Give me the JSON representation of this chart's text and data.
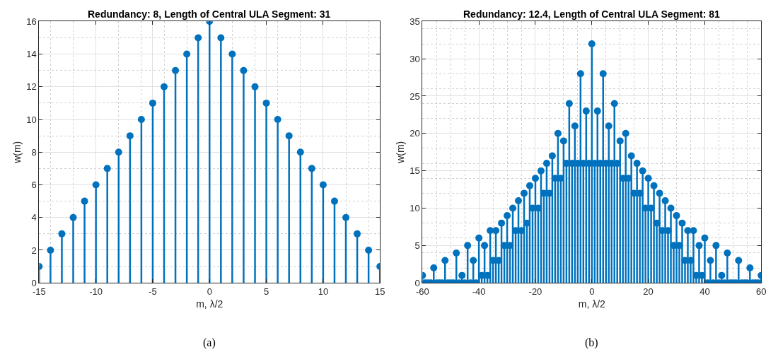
{
  "chart_data": [
    {
      "type": "lollipop",
      "title": "Redundancy: 8, Length of Central ULA Segment: 31",
      "xlabel": "m, λ/2",
      "ylabel": "w(m)",
      "annotations": [
        "(a)"
      ],
      "x": [
        -15,
        -14,
        -13,
        -12,
        -11,
        -10,
        -9,
        -8,
        -7,
        -6,
        -5,
        -4,
        -3,
        -2,
        -1,
        0,
        1,
        2,
        3,
        4,
        5,
        6,
        7,
        8,
        9,
        10,
        11,
        12,
        13,
        14,
        15
      ],
      "series": [
        {
          "color": "#0072bd",
          "values": [
            1,
            2,
            3,
            4,
            5,
            6,
            7,
            8,
            9,
            10,
            11,
            12,
            13,
            14,
            15,
            16,
            15,
            14,
            13,
            12,
            11,
            10,
            9,
            8,
            7,
            6,
            5,
            4,
            3,
            2,
            1
          ]
        }
      ],
      "xlim": [
        -15,
        15
      ],
      "xticks": [
        -15,
        -10,
        -5,
        0,
        5,
        10,
        15
      ],
      "ylim": [
        0,
        16
      ],
      "yticks": [
        0,
        2,
        4,
        6,
        8,
        10,
        12,
        14,
        16
      ],
      "grid": true,
      "marker": "circle",
      "line_style": "solid"
    },
    {
      "type": "lollipop",
      "title": "Redundancy: 12.4, Length of Central ULA Segment: 81",
      "xlabel": "m, λ/2",
      "ylabel": "w(m)",
      "annotations": [
        "(b)"
      ],
      "x": [
        -60,
        -59,
        -58,
        -57,
        -56,
        -55,
        -54,
        -53,
        -52,
        -51,
        -50,
        -49,
        -48,
        -47,
        -46,
        -45,
        -44,
        -43,
        -42,
        -41,
        -40,
        -39,
        -38,
        -37,
        -36,
        -35,
        -34,
        -33,
        -32,
        -31,
        -30,
        -29,
        -28,
        -27,
        -26,
        -25,
        -24,
        -23,
        -22,
        -21,
        -20,
        -19,
        -18,
        -17,
        -16,
        -15,
        -14,
        -13,
        -12,
        -11,
        -10,
        -9,
        -8,
        -7,
        -6,
        -5,
        -4,
        -3,
        -2,
        -1,
        0,
        1,
        2,
        3,
        4,
        5,
        6,
        7,
        8,
        9,
        10,
        11,
        12,
        13,
        14,
        15,
        16,
        17,
        18,
        19,
        20,
        21,
        22,
        23,
        24,
        25,
        26,
        27,
        28,
        29,
        30,
        31,
        32,
        33,
        34,
        35,
        36,
        37,
        38,
        39,
        40,
        41,
        42,
        43,
        44,
        45,
        46,
        47,
        48,
        49,
        50,
        51,
        52,
        53,
        54,
        55,
        56,
        57,
        58,
        59,
        60
      ],
      "series": [
        {
          "color": "#0072bd",
          "values": [
            1,
            0,
            0,
            0,
            2,
            0,
            0,
            0,
            3,
            0,
            0,
            0,
            4,
            0,
            1,
            0,
            5,
            0,
            3,
            0,
            6,
            1,
            5,
            1,
            7,
            3,
            7,
            3,
            8,
            5,
            9,
            5,
            10,
            7,
            11,
            7,
            12,
            8,
            13,
            10,
            14,
            10,
            15,
            12,
            16,
            12,
            17,
            14,
            20,
            14,
            19,
            16,
            24,
            16,
            21,
            16,
            28,
            16,
            23,
            16,
            32,
            16,
            23,
            16,
            28,
            16,
            21,
            16,
            24,
            16,
            19,
            14,
            20,
            14,
            17,
            12,
            16,
            12,
            15,
            10,
            14,
            10,
            13,
            8,
            12,
            7,
            11,
            7,
            10,
            5,
            9,
            5,
            8,
            3,
            7,
            3,
            7,
            1,
            5,
            1,
            6,
            0,
            3,
            0,
            5,
            0,
            1,
            0,
            4,
            0,
            0,
            0,
            3,
            0,
            0,
            0,
            2,
            0,
            0,
            0,
            1
          ]
        }
      ],
      "xlim": [
        -60,
        60
      ],
      "xticks": [
        -60,
        -40,
        -20,
        0,
        20,
        40,
        60
      ],
      "ylim": [
        0,
        35
      ],
      "yticks": [
        0,
        5,
        10,
        15,
        20,
        25,
        30,
        35
      ],
      "grid": true,
      "marker": "circle",
      "line_style": "solid"
    }
  ]
}
